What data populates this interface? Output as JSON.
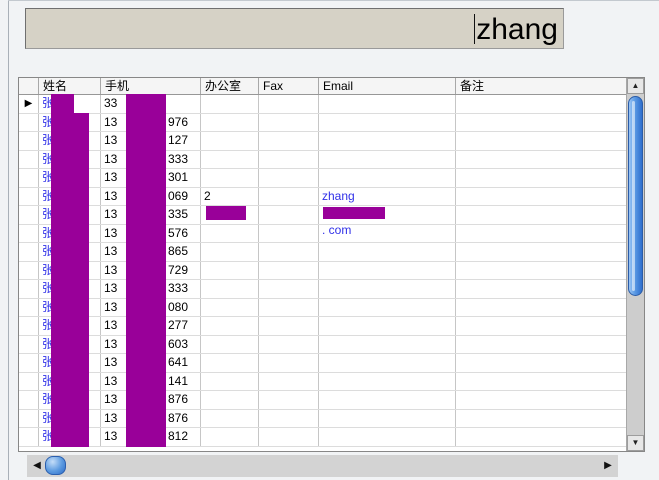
{
  "search": {
    "value": "zhang"
  },
  "grid": {
    "columns": [
      "姓名",
      "手机",
      "办公室",
      "Fax",
      "Email",
      "备注"
    ],
    "rows": [
      {
        "selected": true,
        "name": "张",
        "phone_prefix": "33",
        "phone_suffix": ""
      },
      {
        "selected": false,
        "name": "张",
        "phone_prefix": "13",
        "phone_suffix": "976"
      },
      {
        "selected": false,
        "name": "张",
        "phone_prefix": "13",
        "phone_suffix": "127"
      },
      {
        "selected": false,
        "name": "张",
        "phone_prefix": "13",
        "phone_suffix": "333"
      },
      {
        "selected": false,
        "name": "张",
        "phone_prefix": "13",
        "phone_suffix": "301"
      },
      {
        "selected": false,
        "name": "张",
        "phone_prefix": "13",
        "phone_suffix": "069",
        "office_prefix": "2",
        "email_prefix": "zhang",
        "email_suffix": ". com"
      },
      {
        "selected": false,
        "name": "张",
        "phone_prefix": "13",
        "phone_suffix": "335"
      },
      {
        "selected": false,
        "name": "张",
        "phone_prefix": "13",
        "phone_suffix": "576"
      },
      {
        "selected": false,
        "name": "张",
        "phone_prefix": "13",
        "phone_suffix": "865"
      },
      {
        "selected": false,
        "name": "张",
        "phone_prefix": "13",
        "phone_suffix": "729"
      },
      {
        "selected": false,
        "name": "张",
        "phone_prefix": "13",
        "phone_suffix": "333"
      },
      {
        "selected": false,
        "name": "张",
        "phone_prefix": "13",
        "phone_suffix": "080"
      },
      {
        "selected": false,
        "name": "张",
        "phone_prefix": "13",
        "phone_suffix": "277"
      },
      {
        "selected": false,
        "name": "张",
        "phone_prefix": "13",
        "phone_suffix": "603"
      },
      {
        "selected": false,
        "name": "张",
        "phone_prefix": "13",
        "phone_suffix": "641"
      },
      {
        "selected": false,
        "name": "张",
        "phone_prefix": "13",
        "phone_suffix": "141"
      },
      {
        "selected": false,
        "name": "张",
        "phone_prefix": "13",
        "phone_suffix": "876"
      },
      {
        "selected": false,
        "name": "张",
        "phone_prefix": "13",
        "phone_suffix": "876"
      },
      {
        "selected": false,
        "name": "张",
        "phone_prefix": "13",
        "phone_suffix": "812"
      }
    ]
  },
  "icons": {
    "row_selector": "▶",
    "up": "▲",
    "down": "▼",
    "left": "◀",
    "right": "▶"
  },
  "colors": {
    "redaction": "#990099",
    "link_blue": "#3030e8",
    "search_bg": "#d6d2c6",
    "thumb_blue": "#2f6fce"
  }
}
